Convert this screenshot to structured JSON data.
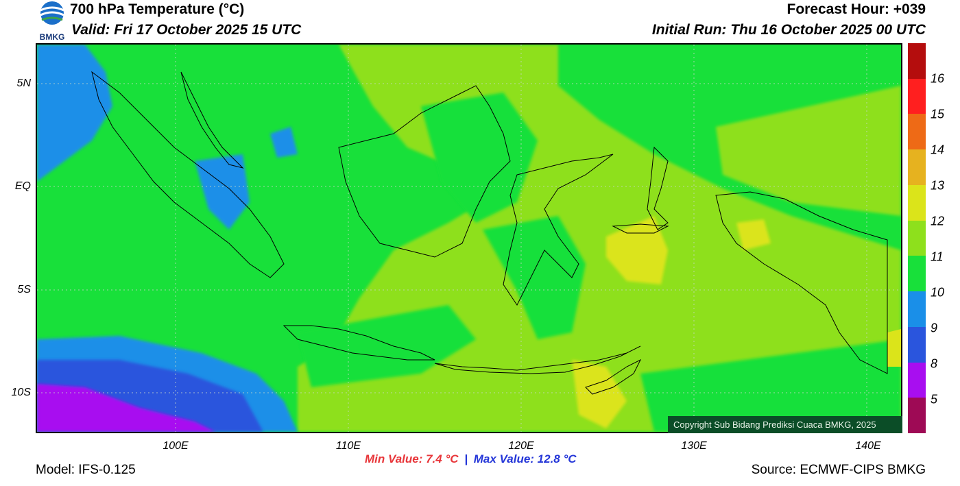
{
  "header": {
    "title": "700 hPa Temperature (°C)",
    "valid": "Valid: Fri 17 October 2025 15 UTC",
    "forecast_hour": "Forecast Hour: +039",
    "initial_run": "Initial Run: Thu 16 October 2025 00 UTC",
    "logo_text": "BMKG"
  },
  "axes": {
    "lat_labels": [
      "5N",
      "EQ",
      "5S",
      "10S"
    ],
    "lon_labels": [
      "100E",
      "110E",
      "120E",
      "130E",
      "140E"
    ]
  },
  "legend": {
    "labels": [
      "16",
      "15",
      "14",
      "13",
      "12",
      "11",
      "10",
      "9",
      "8",
      "5"
    ],
    "colors": [
      "#b40d0d",
      "#ff1f1f",
      "#ee6a16",
      "#e6b21f",
      "#dbe41a",
      "#8ee01c",
      "#18e03a",
      "#1a8fe8",
      "#2a55dd",
      "#a80ef0",
      "#9e0a55"
    ]
  },
  "stats": {
    "min": "Min Value: 7.4 °C",
    "separator": "|",
    "max": "Max Value: 12.8 °C"
  },
  "footer": {
    "model": "Model: IFS-0.125",
    "source": "Source: ECMWF-CIPS BMKG",
    "copyright": "Copyright Sub Bidang Prediksi Cuaca BMKG, 2025"
  },
  "field_colors": {
    "green_11": "#18e03a",
    "lime_12": "#8ee01c",
    "yellow_13": "#dbe41a",
    "blue_10": "#1a8fe8",
    "blue_9": "#2a55dd",
    "purple_8": "#a80ef0"
  }
}
